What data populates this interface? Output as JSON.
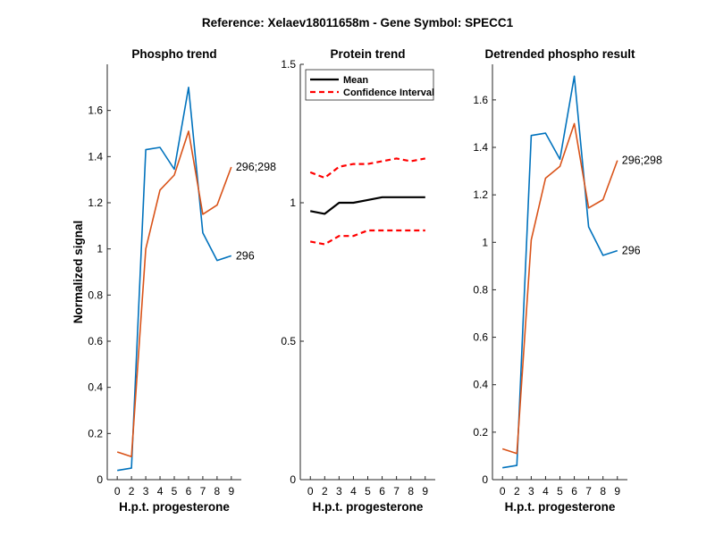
{
  "figure_title": "Reference:  Xelaev18011658m - Gene Symbol:  SPECC1",
  "chart_data": [
    {
      "type": "line",
      "title": "Phospho trend",
      "xlabel": "H.p.t. progesterone",
      "ylabel": "Normalized signal",
      "x": [
        0,
        2,
        3,
        4,
        5,
        6,
        7,
        8,
        9
      ],
      "xticks": [
        "0",
        "2",
        "3",
        "4",
        "5",
        "6",
        "7",
        "8",
        "9"
      ],
      "ylim": [
        0,
        1.8
      ],
      "yticks": [
        "0",
        "0.2",
        "0.4",
        "0.6",
        "0.8",
        "1",
        "1.2",
        "1.4",
        "1.6"
      ],
      "ytick_values": [
        0,
        0.2,
        0.4,
        0.6,
        0.8,
        1,
        1.2,
        1.4,
        1.6
      ],
      "series": [
        {
          "name": "296",
          "color": "#0072BD",
          "values": [
            0.04,
            0.05,
            1.43,
            1.44,
            1.345,
            1.7,
            1.07,
            0.95,
            0.97
          ]
        },
        {
          "name": "296;298",
          "color": "#D95319",
          "values": [
            0.12,
            0.1,
            1.0,
            1.255,
            1.32,
            1.51,
            1.15,
            1.19,
            1.355
          ]
        }
      ],
      "grid": false
    },
    {
      "type": "line",
      "title": "Protein trend",
      "xlabel": "H.p.t. progesterone",
      "ylabel": "",
      "x": [
        0,
        2,
        3,
        4,
        5,
        6,
        7,
        8,
        9
      ],
      "xticks": [
        "0",
        "2",
        "3",
        "4",
        "5",
        "6",
        "7",
        "8",
        "9"
      ],
      "ylim": [
        0,
        1.5
      ],
      "yticks": [
        "0",
        "0.5",
        "1",
        "1.5"
      ],
      "ytick_values": [
        0,
        0.5,
        1,
        1.5
      ],
      "series": [
        {
          "name": "Mean",
          "color": "#000000",
          "style": "solid",
          "values": [
            0.97,
            0.96,
            1.0,
            1.0,
            1.01,
            1.02,
            1.02,
            1.02,
            1.02
          ]
        },
        {
          "name": "Confidence Interval",
          "color": "#FF0000",
          "style": "dashed",
          "values": [
            1.11,
            1.09,
            1.13,
            1.14,
            1.14,
            1.15,
            1.16,
            1.15,
            1.16
          ]
        },
        {
          "name": "Confidence Interval",
          "color": "#FF0000",
          "style": "dashed",
          "legend": false,
          "values": [
            0.86,
            0.85,
            0.88,
            0.88,
            0.9,
            0.9,
            0.9,
            0.9,
            0.9
          ]
        }
      ],
      "legend": {
        "placement": "top-left",
        "entries": [
          "Mean",
          "Confidence Interval"
        ]
      },
      "grid": false
    },
    {
      "type": "line",
      "title": "Detrended phospho result",
      "xlabel": "H.p.t. progesterone",
      "ylabel": "",
      "x": [
        0,
        2,
        3,
        4,
        5,
        6,
        7,
        8,
        9
      ],
      "xticks": [
        "0",
        "2",
        "3",
        "4",
        "5",
        "6",
        "7",
        "8",
        "9"
      ],
      "ylim": [
        0,
        1.75
      ],
      "yticks": [
        "0",
        "0.2",
        "0.4",
        "0.6",
        "0.8",
        "1",
        "1.2",
        "1.4",
        "1.6"
      ],
      "ytick_values": [
        0,
        0.2,
        0.4,
        0.6,
        0.8,
        1,
        1.2,
        1.4,
        1.6
      ],
      "series": [
        {
          "name": "296",
          "color": "#0072BD",
          "values": [
            0.05,
            0.06,
            1.45,
            1.46,
            1.35,
            1.7,
            1.065,
            0.945,
            0.965
          ]
        },
        {
          "name": "296;298",
          "color": "#D95319",
          "values": [
            0.13,
            0.11,
            1.01,
            1.27,
            1.32,
            1.5,
            1.145,
            1.18,
            1.345
          ]
        }
      ],
      "grid": false
    }
  ]
}
